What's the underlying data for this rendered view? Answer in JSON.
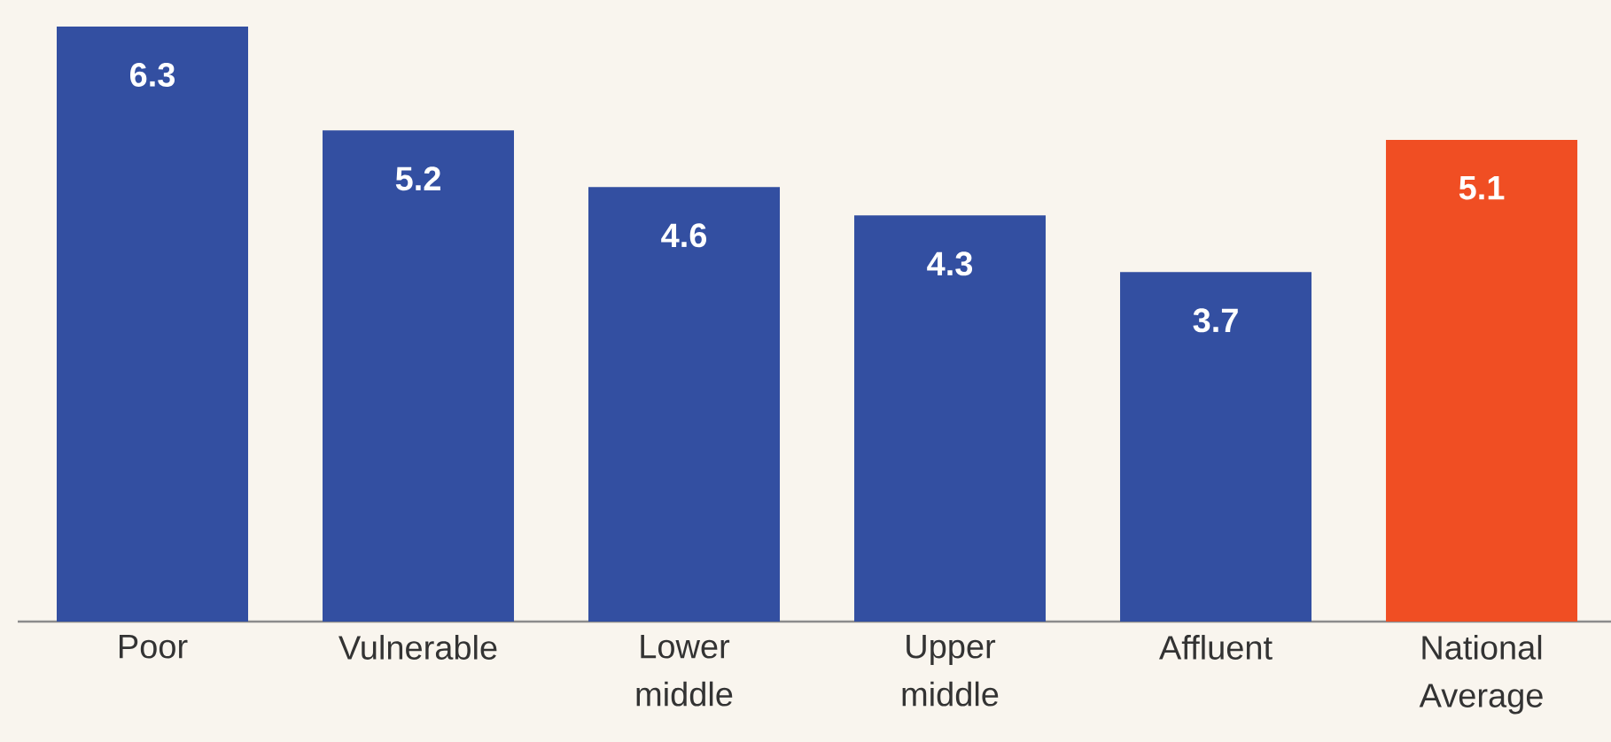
{
  "chart_data": {
    "type": "bar",
    "categories": [
      "Poor",
      "Vulnerable",
      "Lower middle",
      "Upper middle",
      "Affluent",
      "National Average"
    ],
    "values": [
      6.3,
      5.2,
      4.6,
      4.3,
      3.7,
      5.1
    ],
    "colors": [
      "#334fa1",
      "#334fa1",
      "#334fa1",
      "#334fa1",
      "#334fa1",
      "#f04e23"
    ],
    "data_labels": true
  }
}
